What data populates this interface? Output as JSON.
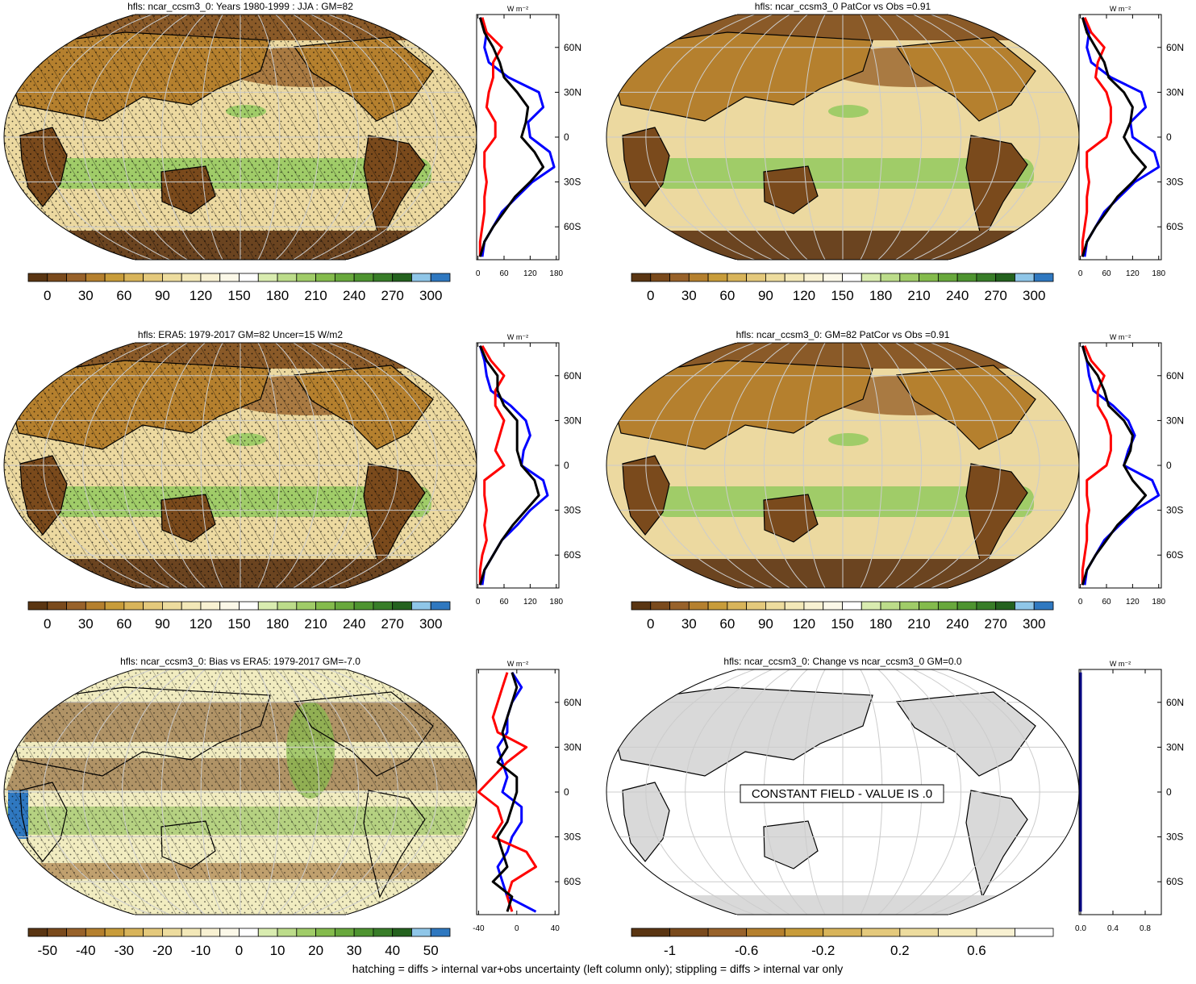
{
  "unit": "W m⁻²",
  "lat_ticks": [
    {
      "value": 60,
      "label": "60N"
    },
    {
      "value": 30,
      "label": "30N"
    },
    0,
    {
      "value": -30,
      "label": "30S"
    },
    {
      "value": -60,
      "label": "60S"
    }
  ],
  "lat_lim": [
    -82,
    82
  ],
  "footnote": "hatching = diffs > internal var+obs uncertainty (left column only); stippling = diffs > internal var only",
  "panels": [
    {
      "title": "hfls: ncar_ccsm3_0: Years 1980-1999 : JJA : GM=82",
      "colorbar": {
        "labels": [
          0,
          30,
          60,
          90,
          120,
          150,
          180,
          210,
          240,
          270,
          300
        ],
        "colors": [
          "#5a3512",
          "#7a4a1c",
          "#98622a",
          "#b5802e",
          "#c89c3a",
          "#d8b45a",
          "#e4c97c",
          "#eddc9e",
          "#f3e8b8",
          "#f8f1d2",
          "#fbf8e8",
          "#ffffff",
          "#d9ecb0",
          "#bcdc8a",
          "#a0cc68",
          "#84bb4c",
          "#68a83c",
          "#4e9430",
          "#387d28",
          "#24621e",
          "#8fc6e8",
          "#2f78c0"
        ]
      },
      "zonal": {
        "xlim": [
          -3,
          186
        ],
        "xticks": [
          0,
          60,
          120,
          180
        ],
        "lat": [
          80,
          70,
          60,
          50,
          40,
          30,
          20,
          10,
          0,
          -10,
          -20,
          -30,
          -40,
          -50,
          -60,
          -70,
          -80
        ],
        "series": [
          {
            "color": "#0000ff",
            "values": [
              5,
              20,
              15,
              25,
              70,
              140,
              150,
              115,
              120,
              165,
              175,
              125,
              90,
              55,
              35,
              15,
              10
            ]
          },
          {
            "color": "#ff0000",
            "values": [
              10,
              20,
              55,
              35,
              35,
              25,
              20,
              40,
              40,
              15,
              15,
              20,
              15,
              15,
              10,
              5,
              5
            ]
          },
          {
            "color": "#000000",
            "values": [
              5,
              15,
              35,
              50,
              60,
              90,
              115,
              110,
              100,
              130,
              150,
              120,
              85,
              60,
              35,
              15,
              5
            ]
          }
        ]
      }
    },
    {
      "title": "hfls: ncar_ccsm3_0 PatCor vs Obs =0.91",
      "colorbar": {
        "labels": [
          0,
          30,
          60,
          90,
          120,
          150,
          180,
          210,
          240,
          270,
          300
        ],
        "colors": [
          "#5a3512",
          "#7a4a1c",
          "#98622a",
          "#b5802e",
          "#c89c3a",
          "#d8b45a",
          "#e4c97c",
          "#eddc9e",
          "#f3e8b8",
          "#f8f1d2",
          "#fbf8e8",
          "#ffffff",
          "#d9ecb0",
          "#bcdc8a",
          "#a0cc68",
          "#84bb4c",
          "#68a83c",
          "#4e9430",
          "#387d28",
          "#24621e",
          "#8fc6e8",
          "#2f78c0"
        ]
      },
      "zonal": {
        "xlim": [
          -3,
          186
        ],
        "xticks": [
          0,
          60,
          120,
          180
        ],
        "lat": [
          80,
          70,
          60,
          50,
          40,
          30,
          20,
          10,
          0,
          -10,
          -20,
          -30,
          -40,
          -50,
          -60,
          -70,
          -80
        ],
        "series": [
          {
            "color": "#0000ff",
            "values": [
              5,
              20,
              15,
              25,
              70,
              140,
              150,
              115,
              120,
              170,
              180,
              125,
              90,
              55,
              35,
              15,
              10
            ]
          },
          {
            "color": "#ff0000",
            "values": [
              10,
              25,
              55,
              40,
              35,
              60,
              70,
              70,
              60,
              15,
              15,
              20,
              15,
              15,
              10,
              5,
              5
            ]
          },
          {
            "color": "#000000",
            "values": [
              5,
              15,
              35,
              55,
              65,
              100,
              120,
              115,
              100,
              120,
              150,
              120,
              85,
              60,
              35,
              15,
              5
            ]
          }
        ]
      }
    },
    {
      "title": "hfls: ERA5: 1979-2017 GM=82 Uncer=15 W/m2",
      "colorbar": {
        "labels": [
          0,
          30,
          60,
          90,
          120,
          150,
          180,
          210,
          240,
          270,
          300
        ],
        "colors": [
          "#5a3512",
          "#7a4a1c",
          "#98622a",
          "#b5802e",
          "#c89c3a",
          "#d8b45a",
          "#e4c97c",
          "#eddc9e",
          "#f3e8b8",
          "#f8f1d2",
          "#fbf8e8",
          "#ffffff",
          "#d9ecb0",
          "#bcdc8a",
          "#a0cc68",
          "#84bb4c",
          "#68a83c",
          "#4e9430",
          "#387d28",
          "#24621e",
          "#8fc6e8",
          "#2f78c0"
        ]
      },
      "zonal": {
        "xlim": [
          -3,
          186
        ],
        "xticks": [
          0,
          60,
          120,
          180
        ],
        "lat": [
          80,
          70,
          60,
          50,
          40,
          30,
          20,
          10,
          0,
          -10,
          -20,
          -30,
          -40,
          -50,
          -60,
          -70,
          -80
        ],
        "series": [
          {
            "color": "#0000ff",
            "values": [
              5,
              15,
              20,
              30,
              75,
              110,
              120,
              105,
              100,
              150,
              160,
              120,
              90,
              55,
              35,
              15,
              10
            ]
          },
          {
            "color": "#ff0000",
            "values": [
              10,
              30,
              60,
              40,
              40,
              60,
              50,
              40,
              60,
              15,
              15,
              20,
              15,
              20,
              10,
              5,
              5
            ]
          },
          {
            "color": "#000000",
            "values": [
              5,
              20,
              45,
              45,
              60,
              90,
              90,
              90,
              100,
              130,
              140,
              110,
              80,
              55,
              35,
              15,
              5
            ]
          }
        ]
      }
    },
    {
      "title": "hfls: ncar_ccsm3_0: GM=82 PatCor vs Obs =0.91",
      "colorbar": {
        "labels": [
          0,
          30,
          60,
          90,
          120,
          150,
          180,
          210,
          240,
          270,
          300
        ],
        "colors": [
          "#5a3512",
          "#7a4a1c",
          "#98622a",
          "#b5802e",
          "#c89c3a",
          "#d8b45a",
          "#e4c97c",
          "#eddc9e",
          "#f3e8b8",
          "#f8f1d2",
          "#fbf8e8",
          "#ffffff",
          "#d9ecb0",
          "#bcdc8a",
          "#a0cc68",
          "#84bb4c",
          "#68a83c",
          "#4e9430",
          "#387d28",
          "#24621e",
          "#8fc6e8",
          "#2f78c0"
        ]
      },
      "zonal": {
        "xlim": [
          -3,
          186
        ],
        "xticks": [
          0,
          60,
          120,
          180
        ],
        "lat": [
          80,
          70,
          60,
          50,
          40,
          30,
          20,
          10,
          0,
          -10,
          -20,
          -30,
          -40,
          -50,
          -60,
          -70,
          -80
        ],
        "series": [
          {
            "color": "#0000ff",
            "values": [
              5,
              15,
              20,
              30,
              75,
              110,
              125,
              110,
              100,
              165,
              180,
              125,
              90,
              55,
              35,
              15,
              10
            ]
          },
          {
            "color": "#ff0000",
            "values": [
              10,
              25,
              55,
              40,
              40,
              60,
              70,
              70,
              60,
              15,
              15,
              20,
              15,
              15,
              10,
              5,
              5
            ]
          },
          {
            "color": "#000000",
            "values": [
              5,
              15,
              40,
              55,
              65,
              100,
              120,
              115,
              100,
              120,
              150,
              120,
              85,
              60,
              35,
              15,
              5
            ]
          }
        ]
      }
    },
    {
      "title": "hfls: ncar_ccsm3_0: Bias vs ERA5: 1979-2017 GM=-7.0",
      "colorbar": {
        "labels": [
          -50,
          -40,
          -30,
          -20,
          -10,
          0,
          10,
          20,
          30,
          40,
          50
        ],
        "colors": [
          "#5a3512",
          "#7a4a1c",
          "#98622a",
          "#b5802e",
          "#c89c3a",
          "#d8b45a",
          "#e4c97c",
          "#eddc9e",
          "#f3e8b8",
          "#f8f1d2",
          "#fbf8e8",
          "#ffffff",
          "#d9ecb0",
          "#bcdc8a",
          "#a0cc68",
          "#84bb4c",
          "#68a83c",
          "#4e9430",
          "#387d28",
          "#24621e",
          "#8fc6e8",
          "#2f78c0"
        ]
      },
      "zonal": {
        "xlim": [
          -42,
          44
        ],
        "xticks": [
          -40,
          0,
          40
        ],
        "lat": [
          80,
          70,
          60,
          50,
          40,
          30,
          20,
          10,
          0,
          -10,
          -20,
          -30,
          -40,
          -50,
          -60,
          -70,
          -80
        ],
        "series": [
          {
            "color": "#0000ff",
            "values": [
              -5,
              5,
              -5,
              -10,
              -10,
              -20,
              -15,
              -10,
              -15,
              5,
              5,
              -5,
              -10,
              -20,
              -15,
              -10,
              20
            ]
          },
          {
            "color": "#ff0000",
            "values": [
              -10,
              -15,
              -20,
              -25,
              -20,
              10,
              -10,
              -25,
              -40,
              -20,
              -15,
              -25,
              10,
              20,
              -5,
              -10,
              -5
            ]
          },
          {
            "color": "#000000",
            "values": [
              -5,
              0,
              -5,
              -10,
              -15,
              -10,
              -20,
              0,
              0,
              -5,
              -10,
              -20,
              -15,
              -10,
              -25,
              -5,
              -10
            ]
          }
        ]
      }
    },
    {
      "title": "hfls: ncar_ccsm3_0: Change vs ncar_ccsm3_0 GM=0.0",
      "annotation": "CONSTANT FIELD - VALUE IS .0",
      "colorbar": {
        "labels": [
          -1,
          -0.6,
          -0.2,
          0.2,
          0.6
        ],
        "colors": [
          "#5a3512",
          "#7a4a1c",
          "#98622a",
          "#b5802e",
          "#c89c3a",
          "#d8b45a",
          "#e4c97c",
          "#eddc9e",
          "#f3e8b8",
          "#f8f1d2",
          "#ffffff"
        ]
      },
      "zonal": {
        "xlim": [
          -0.02,
          1.0
        ],
        "xticks": [
          {
            "value": 0,
            "label": "0.0"
          },
          0.4,
          0.8
        ],
        "lat": [
          80,
          70,
          60,
          50,
          40,
          30,
          20,
          10,
          0,
          -10,
          -20,
          -30,
          -40,
          -50,
          -60,
          -70,
          -80
        ],
        "series": [
          {
            "color": "#000080",
            "values": [
              0,
              0,
              0,
              0,
              0,
              0,
              0,
              0,
              0,
              0,
              0,
              0,
              0,
              0,
              0,
              0,
              0
            ]
          }
        ]
      }
    }
  ]
}
